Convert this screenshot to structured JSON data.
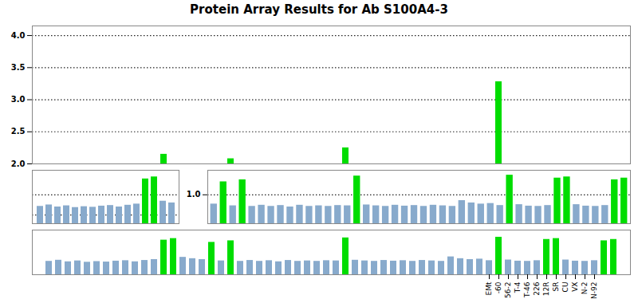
{
  "chart_data": [
    {
      "type": "bar",
      "title": "Protein Array Results for Ab S100A4-3",
      "categories": [
        null,
        null,
        null,
        null,
        null,
        null,
        null,
        null,
        null,
        null,
        null,
        null,
        null,
        null,
        null,
        null,
        null,
        null,
        null,
        null,
        null,
        null,
        null,
        null,
        null,
        null,
        null,
        null,
        null,
        null,
        null,
        null,
        null,
        null,
        null,
        null,
        null,
        null,
        null,
        null,
        null,
        null,
        null,
        null,
        null,
        null,
        null,
        null,
        null,
        null,
        null,
        null,
        null,
        null,
        null,
        null,
        null,
        null,
        null,
        null
      ],
      "values": [
        null,
        null,
        null,
        null,
        null,
        null,
        null,
        null,
        null,
        null,
        null,
        null,
        2.15,
        null,
        null,
        null,
        null,
        null,
        null,
        2.08,
        null,
        null,
        null,
        null,
        null,
        null,
        null,
        null,
        null,
        null,
        null,
        2.25,
        null,
        null,
        null,
        null,
        null,
        null,
        null,
        null,
        null,
        null,
        null,
        null,
        null,
        null,
        null,
        3.28,
        null,
        null,
        null,
        null,
        null,
        null,
        null,
        null,
        null,
        null,
        null,
        null
      ],
      "color": "#00dd00",
      "ylim": [
        2.0,
        4.15
      ],
      "yticks": [
        {
          "value": 2.0,
          "label": "2.0"
        },
        2.5,
        {
          "value": 3.0,
          "label": "3.0"
        },
        3.5,
        {
          "value": 4.0,
          "label": "4.0"
        }
      ],
      "grid": true,
      "tick_labels": "y"
    },
    {
      "type": "bar",
      "categories": [
        null,
        null,
        null,
        null,
        null,
        null,
        null,
        null,
        null,
        null,
        null,
        null,
        null,
        null,
        null,
        null
      ],
      "values": [
        0.6,
        0.65,
        0.58,
        0.62,
        0.56,
        0.59,
        0.57,
        0.61,
        0.63,
        0.58,
        0.64,
        0.68,
        1.55,
        1.62,
        0.78,
        0.72
      ],
      "colors": [
        "#88aacc",
        "#88aacc",
        "#88aacc",
        "#88aacc",
        "#88aacc",
        "#88aacc",
        "#88aacc",
        "#88aacc",
        "#88aacc",
        "#88aacc",
        "#88aacc",
        "#88aacc",
        "#00dd00",
        "#00dd00",
        "#88aacc",
        "#88aacc"
      ],
      "ylim": [
        0,
        1.85
      ],
      "yticks": [
        0.3,
        1.0
      ],
      "grid": true,
      "tick_labels": false
    },
    {
      "type": "bar",
      "categories": [
        null,
        null,
        null,
        null,
        null,
        null,
        null,
        null,
        null,
        null,
        null,
        null,
        null,
        null,
        null,
        null,
        null,
        null,
        null,
        null,
        null,
        null,
        null,
        null,
        null,
        null,
        null,
        null,
        null,
        null,
        null,
        null,
        null,
        null,
        null,
        null,
        null,
        null,
        null,
        null,
        null,
        null,
        null,
        null
      ],
      "values": [
        0.68,
        1.45,
        0.62,
        1.52,
        0.6,
        0.64,
        0.6,
        0.63,
        0.58,
        0.64,
        0.6,
        0.62,
        0.6,
        0.63,
        0.62,
        1.65,
        0.65,
        0.62,
        0.6,
        0.64,
        0.61,
        0.63,
        0.6,
        0.64,
        0.62,
        0.6,
        0.8,
        0.72,
        0.68,
        0.7,
        0.63,
        1.68,
        0.66,
        0.61,
        0.6,
        0.63,
        1.58,
        1.62,
        0.66,
        0.61,
        0.6,
        0.63,
        1.52,
        1.58
      ],
      "colors": [
        "#88aacc",
        "#00dd00",
        "#88aacc",
        "#00dd00",
        "#88aacc",
        "#88aacc",
        "#88aacc",
        "#88aacc",
        "#88aacc",
        "#88aacc",
        "#88aacc",
        "#88aacc",
        "#88aacc",
        "#88aacc",
        "#88aacc",
        "#00dd00",
        "#88aacc",
        "#88aacc",
        "#88aacc",
        "#88aacc",
        "#88aacc",
        "#88aacc",
        "#88aacc",
        "#88aacc",
        "#88aacc",
        "#88aacc",
        "#88aacc",
        "#88aacc",
        "#88aacc",
        "#88aacc",
        "#88aacc",
        "#00dd00",
        "#88aacc",
        "#88aacc",
        "#88aacc",
        "#88aacc",
        "#00dd00",
        "#00dd00",
        "#88aacc",
        "#88aacc",
        "#88aacc",
        "#88aacc",
        "#00dd00",
        "#00dd00"
      ],
      "ylim": [
        0,
        1.85
      ],
      "yticks": [
        {
          "value": 1.0,
          "label": "1.0"
        }
      ],
      "grid": true,
      "tick_labels": "y"
    },
    {
      "type": "bar",
      "categories": [
        null,
        null,
        null,
        null,
        null,
        null,
        null,
        null,
        null,
        null,
        null,
        null,
        null,
        null,
        null,
        null,
        null,
        null,
        null,
        null,
        null,
        null,
        null,
        null,
        null,
        null,
        null,
        null,
        null,
        null,
        null,
        null,
        null,
        null,
        null,
        null,
        null,
        null,
        null,
        null,
        null,
        null,
        null,
        null,
        null,
        null,
        "EMt",
        "-60",
        "56-2",
        "T-4",
        "T-46",
        "226",
        "12R",
        "SR",
        "CU",
        "VX",
        "N-2",
        "N-92",
        null,
        null
      ],
      "values": [
        0.6,
        0.65,
        0.58,
        0.62,
        0.56,
        0.59,
        0.57,
        0.61,
        0.63,
        0.58,
        0.64,
        0.68,
        1.55,
        1.62,
        0.78,
        0.72,
        0.68,
        1.45,
        0.62,
        1.52,
        0.6,
        0.64,
        0.6,
        0.63,
        0.58,
        0.64,
        0.6,
        0.62,
        0.6,
        0.63,
        0.62,
        1.65,
        0.65,
        0.62,
        0.6,
        0.64,
        0.61,
        0.63,
        0.6,
        0.64,
        0.62,
        0.6,
        0.8,
        0.72,
        0.68,
        0.7,
        0.63,
        1.68,
        0.66,
        0.61,
        0.6,
        0.63,
        1.58,
        1.62,
        0.66,
        0.61,
        0.6,
        0.63,
        1.52,
        1.58
      ],
      "colors": [
        "#88aacc",
        "#88aacc",
        "#88aacc",
        "#88aacc",
        "#88aacc",
        "#88aacc",
        "#88aacc",
        "#88aacc",
        "#88aacc",
        "#88aacc",
        "#88aacc",
        "#88aacc",
        "#00dd00",
        "#00dd00",
        "#88aacc",
        "#88aacc",
        "#88aacc",
        "#00dd00",
        "#88aacc",
        "#00dd00",
        "#88aacc",
        "#88aacc",
        "#88aacc",
        "#88aacc",
        "#88aacc",
        "#88aacc",
        "#88aacc",
        "#88aacc",
        "#88aacc",
        "#88aacc",
        "#88aacc",
        "#00dd00",
        "#88aacc",
        "#88aacc",
        "#88aacc",
        "#88aacc",
        "#88aacc",
        "#88aacc",
        "#88aacc",
        "#88aacc",
        "#88aacc",
        "#88aacc",
        "#88aacc",
        "#88aacc",
        "#88aacc",
        "#88aacc",
        "#88aacc",
        "#00dd00",
        "#88aacc",
        "#88aacc",
        "#88aacc",
        "#88aacc",
        "#00dd00",
        "#00dd00",
        "#88aacc",
        "#88aacc",
        "#88aacc",
        "#88aacc",
        "#00dd00",
        "#00dd00"
      ],
      "ylim": [
        0,
        2.0
      ],
      "tick_labels": "x"
    }
  ]
}
